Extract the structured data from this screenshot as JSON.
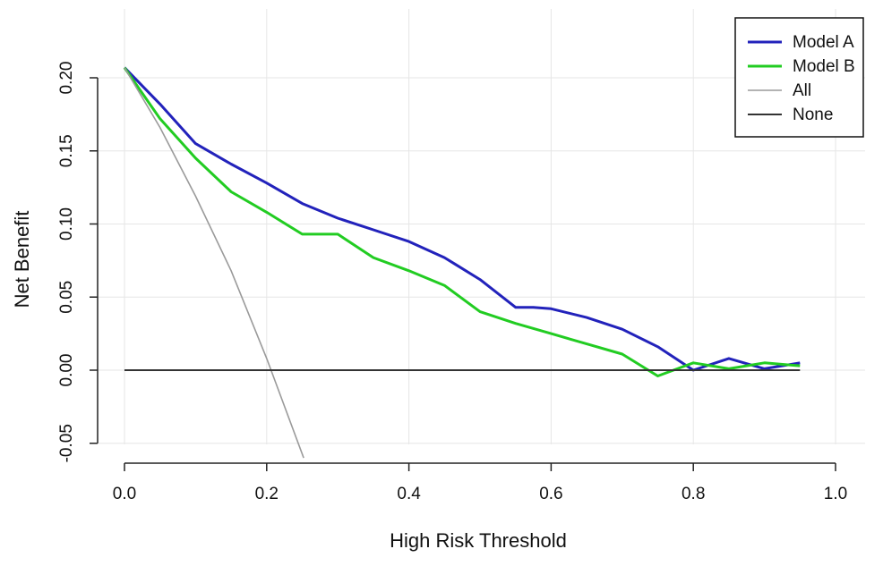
{
  "chart_data": {
    "type": "line",
    "xlabel": "High Risk Threshold",
    "ylabel": "Net Benefit",
    "xlim": [
      0.0,
      1.0
    ],
    "ylim": [
      -0.06,
      0.225
    ],
    "x_ticks": [
      "0.0",
      "0.2",
      "0.4",
      "0.6",
      "0.8",
      "1.0"
    ],
    "y_ticks": [
      "-0.05",
      "0.00",
      "0.05",
      "0.10",
      "0.15",
      "0.20"
    ],
    "grid": true,
    "legend_position": "top-right",
    "series": [
      {
        "name": "Model A",
        "color": "#2222bb",
        "x": [
          0.0,
          0.05,
          0.1,
          0.15,
          0.2,
          0.25,
          0.3,
          0.35,
          0.4,
          0.45,
          0.5,
          0.55,
          0.575,
          0.6,
          0.65,
          0.7,
          0.75,
          0.8,
          0.85,
          0.9,
          0.95
        ],
        "y": [
          0.207,
          0.182,
          0.155,
          0.141,
          0.128,
          0.114,
          0.104,
          0.096,
          0.088,
          0.077,
          0.062,
          0.043,
          0.043,
          0.042,
          0.036,
          0.028,
          0.016,
          0.0,
          0.008,
          0.001,
          0.005
        ]
      },
      {
        "name": "Model B",
        "color": "#22cc22",
        "x": [
          0.0,
          0.05,
          0.1,
          0.15,
          0.2,
          0.25,
          0.3,
          0.35,
          0.4,
          0.45,
          0.5,
          0.55,
          0.6,
          0.65,
          0.7,
          0.75,
          0.8,
          0.85,
          0.9,
          0.95
        ],
        "y": [
          0.207,
          0.172,
          0.145,
          0.122,
          0.108,
          0.093,
          0.093,
          0.077,
          0.068,
          0.058,
          0.04,
          0.032,
          0.025,
          0.018,
          0.011,
          -0.004,
          0.005,
          0.001,
          0.005,
          0.003
        ]
      },
      {
        "name": "All",
        "color": "#9a9a9a",
        "x": [
          0.0,
          0.05,
          0.1,
          0.15,
          0.2,
          0.252
        ],
        "y": [
          0.207,
          0.166,
          0.119,
          0.068,
          0.008,
          -0.06
        ]
      },
      {
        "name": "None",
        "color": "#333333",
        "x": [
          0.0,
          0.95
        ],
        "y": [
          0.0,
          0.0
        ]
      }
    ]
  }
}
